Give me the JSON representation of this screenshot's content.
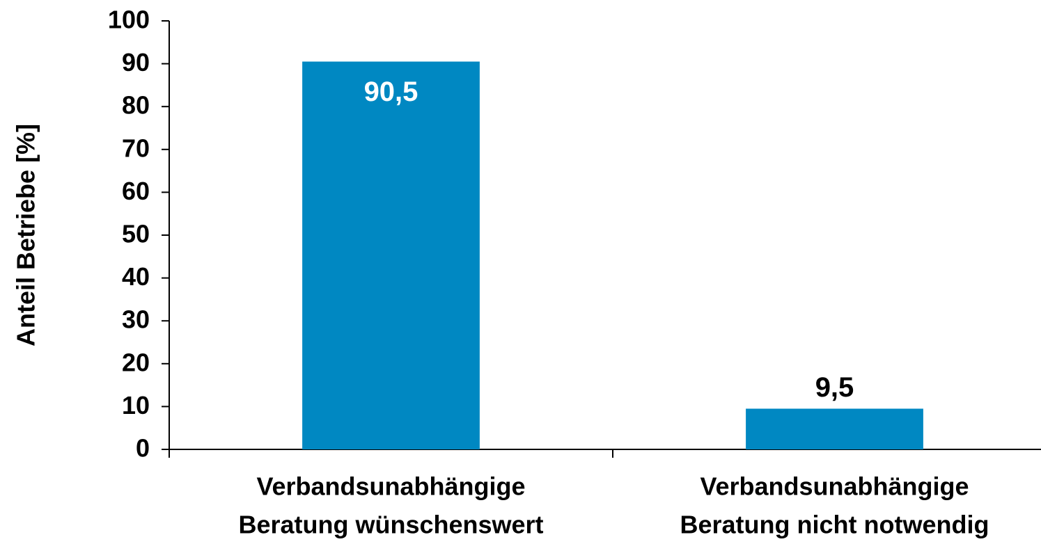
{
  "chart_data": {
    "type": "bar",
    "y_label": "Anteil Betriebe [%]",
    "categories": [
      [
        "Verbandsunabhängige",
        "Beratung wünschenswert"
      ],
      [
        "Verbandsunabhängige",
        "Beratung nicht notwendig"
      ]
    ],
    "values": [
      90.5,
      9.5
    ],
    "value_labels": [
      "90,5",
      "9,5"
    ],
    "color": "#0088c2",
    "ylim": [
      0,
      100
    ],
    "yticks": [
      0,
      10,
      20,
      30,
      40,
      50,
      60,
      70,
      80,
      90,
      100
    ],
    "grid": false
  }
}
